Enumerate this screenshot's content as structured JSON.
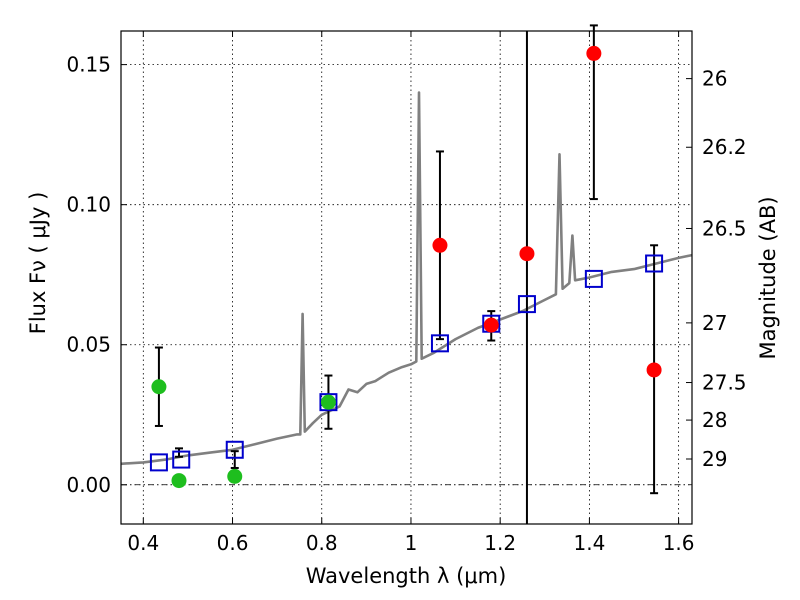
{
  "chart_data": {
    "type": "scatter",
    "xlabel": "Wavelength  λ (μm)",
    "ylabel": "Flux  Fν  ( μJy )",
    "ylabel_right": "Magnitude (AB)",
    "xlim": [
      0.35,
      1.63
    ],
    "ylim": [
      -0.014,
      0.162
    ],
    "grid": true,
    "x_ticks": [
      0.4,
      0.6,
      0.8,
      1.0,
      1.2,
      1.4,
      1.6
    ],
    "x_tick_labels": [
      "0.4",
      "0.6",
      "0.8",
      "1",
      "1.2",
      "1.4",
      "1.6"
    ],
    "y_ticks": [
      0.0,
      0.05,
      0.1,
      0.15
    ],
    "y_tick_labels": [
      "0.00",
      "0.05",
      "0.10",
      "0.15"
    ],
    "right_ticks": [
      {
        "label": "26",
        "flux": 0.145
      },
      {
        "label": "26.2",
        "flux": 0.1205
      },
      {
        "label": "26.5",
        "flux": 0.0915
      },
      {
        "label": "27",
        "flux": 0.0578
      },
      {
        "label": "27.5",
        "flux": 0.0365
      },
      {
        "label": "28",
        "flux": 0.0231
      },
      {
        "label": "29",
        "flux": 0.0092
      }
    ],
    "vertical_line_x": 1.26,
    "zero_line": true,
    "colors": {
      "spectrum": "#808080",
      "model": "#0000cc",
      "detection": "#1ebe1e",
      "nondetection": "#ff0000",
      "errorbar": "#000000"
    },
    "series": [
      {
        "name": "spectrum",
        "kind": "line",
        "points": [
          [
            0.35,
            0.0075
          ],
          [
            0.4,
            0.008
          ],
          [
            0.45,
            0.009
          ],
          [
            0.5,
            0.0105
          ],
          [
            0.55,
            0.0115
          ],
          [
            0.6,
            0.0125
          ],
          [
            0.65,
            0.0145
          ],
          [
            0.7,
            0.0165
          ],
          [
            0.745,
            0.018
          ],
          [
            0.752,
            0.018
          ],
          [
            0.757,
            0.061
          ],
          [
            0.762,
            0.019
          ],
          [
            0.78,
            0.022
          ],
          [
            0.8,
            0.025
          ],
          [
            0.82,
            0.0265
          ],
          [
            0.84,
            0.028
          ],
          [
            0.86,
            0.034
          ],
          [
            0.88,
            0.033
          ],
          [
            0.9,
            0.036
          ],
          [
            0.92,
            0.037
          ],
          [
            0.95,
            0.04
          ],
          [
            0.98,
            0.042
          ],
          [
            1.0,
            0.043
          ],
          [
            1.012,
            0.044
          ],
          [
            1.018,
            0.14
          ],
          [
            1.024,
            0.045
          ],
          [
            1.05,
            0.047
          ],
          [
            1.1,
            0.052
          ],
          [
            1.15,
            0.056
          ],
          [
            1.2,
            0.059
          ],
          [
            1.25,
            0.062
          ],
          [
            1.3,
            0.066
          ],
          [
            1.325,
            0.068
          ],
          [
            1.333,
            0.118
          ],
          [
            1.34,
            0.07
          ],
          [
            1.355,
            0.072
          ],
          [
            1.362,
            0.089
          ],
          [
            1.368,
            0.073
          ],
          [
            1.4,
            0.074
          ],
          [
            1.45,
            0.076
          ],
          [
            1.5,
            0.077
          ],
          [
            1.55,
            0.079
          ],
          [
            1.6,
            0.081
          ],
          [
            1.63,
            0.082
          ]
        ]
      },
      {
        "name": "model",
        "kind": "open-square",
        "x": [
          0.435,
          0.485,
          0.605,
          0.815,
          1.065,
          1.18,
          1.26,
          1.41,
          1.545
        ],
        "y": [
          0.008,
          0.009,
          0.0125,
          0.0295,
          0.0505,
          0.0575,
          0.0645,
          0.0735,
          0.079
        ]
      },
      {
        "name": "detection",
        "kind": "filled-circle",
        "x": [
          0.435,
          0.48,
          0.605,
          0.815
        ],
        "y": [
          0.035,
          0.0015,
          0.003,
          0.0295
        ],
        "yerr_low": [
          0.021,
          0.01,
          0.006,
          0.02
        ],
        "yerr_high": [
          0.049,
          0.013,
          0.012,
          0.039
        ]
      },
      {
        "name": "nondetection",
        "kind": "filled-circle",
        "x": [
          1.065,
          1.18,
          1.26,
          1.41,
          1.545
        ],
        "y": [
          0.0855,
          0.057,
          0.0825,
          0.154,
          0.041
        ],
        "yerr_low": [
          0.052,
          0.0515,
          null,
          0.102,
          -0.003
        ],
        "yerr_high": [
          0.119,
          0.062,
          null,
          0.164,
          0.0855
        ]
      }
    ]
  }
}
